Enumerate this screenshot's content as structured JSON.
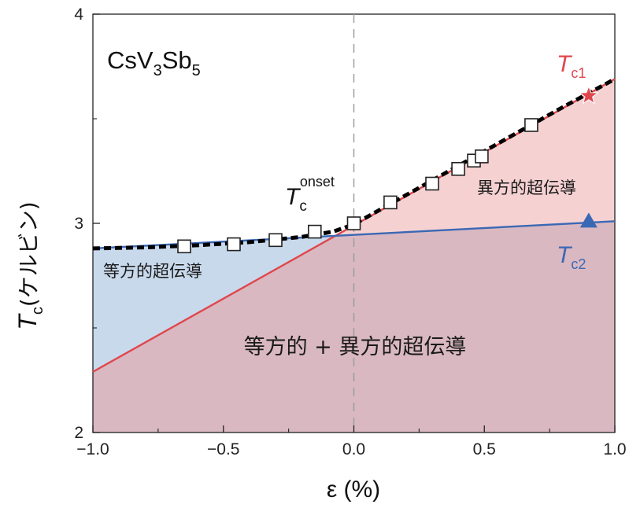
{
  "chart_data": {
    "type": "line",
    "xlabel": "ε (%)",
    "ylabel": {
      "symbol": "T",
      "sub": "c",
      "unit": "(ケルビン)"
    },
    "xlim": [
      -1.0,
      1.0
    ],
    "ylim": [
      2.0,
      4.0
    ],
    "x_ticks": [
      "−1.0",
      "−0.5",
      "0.0",
      "0.5",
      "1.0"
    ],
    "y_ticks": [
      "2",
      "3",
      "4"
    ],
    "compound": {
      "a": "CsV",
      "b": "3",
      "c": "Sb",
      "d": "5"
    },
    "onset_label": {
      "symbol": "T",
      "sub": "c",
      "sup": "onset"
    },
    "tc1_label": {
      "symbol": "T",
      "sub": "c1"
    },
    "tc2_label": {
      "symbol": "T",
      "sub": "c2"
    },
    "region_labels": {
      "isotropic": "等方的超伝導",
      "anisotropic": "異方的超伝導",
      "mixed": "等方的 + 異方的超伝導"
    },
    "colors": {
      "tc1_line": "#e0474c",
      "tc2_line": "#3a68b4",
      "onset_line": "#000000",
      "isotropic_fill": "#c9d9ec",
      "anisotropic_fill": "#f6d1d2",
      "mixed_fill": "#d9b8c2",
      "dashed_zero": "#9a9a9a"
    },
    "series": [
      {
        "name": "T_c1",
        "x": [
          -1.0,
          1.0
        ],
        "y": [
          2.29,
          3.69
        ]
      },
      {
        "name": "T_c2",
        "x": [
          -1.0,
          1.0
        ],
        "y": [
          2.88,
          3.01
        ]
      },
      {
        "name": "T_c onset",
        "x": [
          -1.0,
          -0.8,
          -0.6,
          -0.4,
          -0.2,
          -0.08,
          0.0,
          0.2,
          0.4,
          0.6,
          0.8,
          1.0
        ],
        "y": [
          2.88,
          2.885,
          2.895,
          2.91,
          2.935,
          2.96,
          2.995,
          3.135,
          3.275,
          3.415,
          3.555,
          3.69
        ]
      },
      {
        "name": "data",
        "marker": "square",
        "x": [
          -0.65,
          -0.46,
          -0.3,
          -0.15,
          0.0,
          0.14,
          0.3,
          0.4,
          0.46,
          0.49,
          0.68
        ],
        "y": [
          2.89,
          2.9,
          2.92,
          2.96,
          3.0,
          3.1,
          3.19,
          3.26,
          3.3,
          3.32,
          3.47
        ]
      }
    ],
    "special_points": [
      {
        "name": "T_c1 point",
        "marker": "star",
        "x": 0.9,
        "y": 3.61
      },
      {
        "name": "T_c2 point",
        "marker": "triangle",
        "x": 0.9,
        "y": 3.01
      }
    ]
  }
}
